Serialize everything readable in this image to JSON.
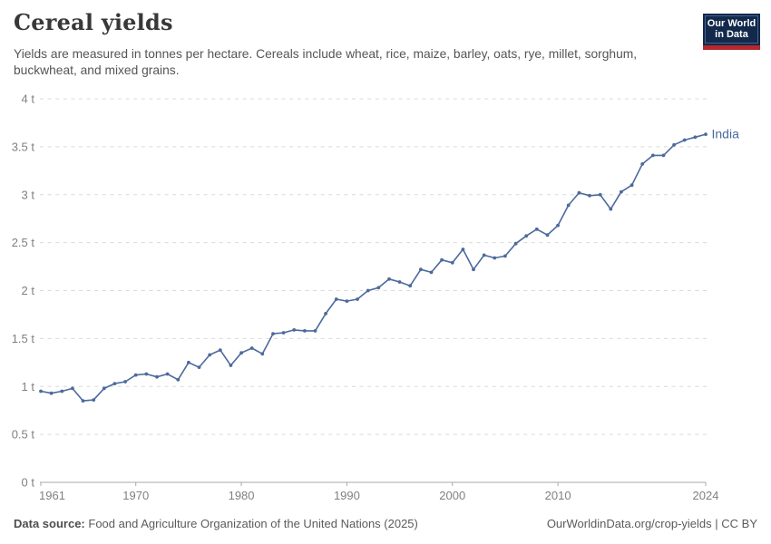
{
  "header": {
    "title": "Cereal yields",
    "subtitle": "Yields are measured in tonnes per hectare. Cereals include wheat, rice, maize, barley, oats, rye, millet, sorghum, buckwheat, and mixed grains.",
    "logo": {
      "line1": "Our World",
      "line2": "in Data"
    }
  },
  "chart_data": {
    "type": "line",
    "title": "Cereal yields",
    "ylabel": "tonnes per hectare",
    "xlabel": "",
    "xlim": [
      1961,
      2024
    ],
    "ylim": [
      0,
      4
    ],
    "grid": "horizontal-dashed",
    "legend_position": "end-of-line",
    "x_ticks": [
      1961,
      1970,
      1980,
      1990,
      2000,
      2010,
      2024
    ],
    "y_ticks": [
      {
        "value": 0,
        "label": "0 t"
      },
      {
        "value": 0.5,
        "label": "0.5 t"
      },
      {
        "value": 1,
        "label": "1 t"
      },
      {
        "value": 1.5,
        "label": "1.5 t"
      },
      {
        "value": 2,
        "label": "2 t"
      },
      {
        "value": 2.5,
        "label": "2.5 t"
      },
      {
        "value": 3,
        "label": "3 t"
      },
      {
        "value": 3.5,
        "label": "3.5 t"
      },
      {
        "value": 4,
        "label": "4 t"
      }
    ],
    "series": [
      {
        "name": "India",
        "color": "#4c6a9c",
        "start_year": 1961,
        "values": [
          0.95,
          0.93,
          0.95,
          0.98,
          0.85,
          0.86,
          0.98,
          1.03,
          1.05,
          1.12,
          1.13,
          1.1,
          1.13,
          1.07,
          1.25,
          1.2,
          1.33,
          1.38,
          1.22,
          1.35,
          1.4,
          1.34,
          1.55,
          1.56,
          1.59,
          1.58,
          1.58,
          1.76,
          1.91,
          1.89,
          1.91,
          2.0,
          2.03,
          2.12,
          2.09,
          2.05,
          2.22,
          2.19,
          2.32,
          2.29,
          2.43,
          2.22,
          2.37,
          2.34,
          2.36,
          2.49,
          2.57,
          2.64,
          2.58,
          2.68,
          2.89,
          3.02,
          2.99,
          3.0,
          2.85,
          3.03,
          3.1,
          3.32,
          3.41,
          3.41,
          3.52,
          3.57,
          3.6,
          3.63
        ]
      }
    ]
  },
  "footer": {
    "source_label": "Data source:",
    "source_text": "Food and Agriculture Organization of the United Nations (2025)",
    "link": "OurWorldinData.org/crop-yields",
    "suffix": " | CC BY"
  },
  "colors": {
    "series_blue": "#4c6a9c",
    "logo_navy": "#12294b",
    "logo_red": "#b5282d",
    "gridline": "#d9d9d9",
    "axis_label": "#808080"
  }
}
